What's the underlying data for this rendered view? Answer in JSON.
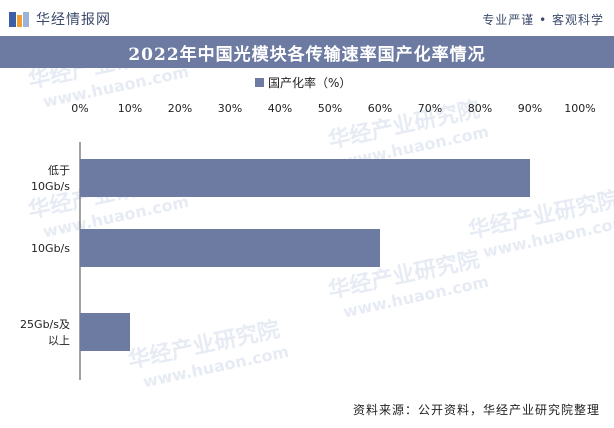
{
  "header": {
    "brand_name": "华经情报网",
    "slogan": "专业严谨 • 客观科学"
  },
  "footer": {
    "source": "资料来源：公开资料，华经产业研究院整理"
  },
  "watermark": {
    "name": "华经产业研究院",
    "url": "www.huaon.com"
  },
  "chart_data": {
    "type": "bar",
    "orientation": "horizontal",
    "title": "2022年中国光模块各传输速率国产化率情况",
    "categories": [
      "低于10Gb/s",
      "10Gb/s",
      "25Gb/s及以上"
    ],
    "category_lines": [
      [
        "低于",
        "10Gb/s"
      ],
      [
        "10Gb/s"
      ],
      [
        "25Gb/s及",
        "以上"
      ]
    ],
    "series": [
      {
        "name": "国产化率（%）",
        "values": [
          90,
          60,
          10
        ],
        "color": "#6d7ba3"
      }
    ],
    "xlim": [
      0,
      100
    ],
    "ticks": [
      0,
      10,
      20,
      30,
      40,
      50,
      60,
      70,
      80,
      90,
      100
    ],
    "tick_labels": [
      "0%",
      "10%",
      "20%",
      "30%",
      "40%",
      "50%",
      "60%",
      "70%",
      "80%",
      "90%",
      "100%"
    ],
    "axis_position": "top",
    "legend_position": "top",
    "grid": false
  }
}
